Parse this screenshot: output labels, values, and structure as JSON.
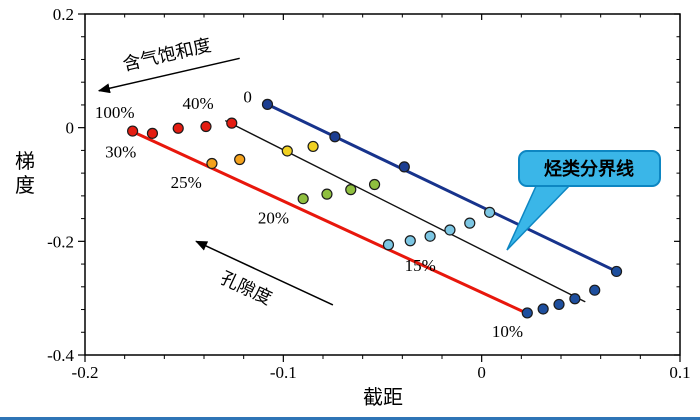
{
  "figure": {
    "background": "#ffffff",
    "bottom_rule_color": "#2e75b6"
  },
  "chart_data": {
    "type": "scatter",
    "title": "",
    "xlabel": "截距",
    "ylabel": "梯度",
    "xlim": [
      -0.2,
      0.1
    ],
    "ylim": [
      -0.4,
      0.2
    ],
    "x_ticks": [
      -0.2,
      -0.1,
      0,
      0.1
    ],
    "x_tick_labels": [
      "-0.2",
      "-0.1",
      "0",
      "0.1"
    ],
    "y_ticks": [
      0.2,
      0,
      -0.2,
      -0.4
    ],
    "y_tick_labels": [
      "0.2",
      "0",
      "-0.2",
      "-0.4"
    ],
    "x_minor_step": 0.02,
    "y_minor_step": 0.04,
    "grid": false,
    "legend": "none",
    "lines": [
      {
        "name": "water-line-0-saturation",
        "color": "#17338c",
        "width": 3,
        "points": [
          [
            -0.108,
            0.041
          ],
          [
            0.068,
            -0.253
          ]
        ]
      },
      {
        "name": "gas-line-100-saturation",
        "color": "#e8170c",
        "width": 3,
        "points": [
          [
            -0.176,
            -0.007
          ],
          [
            0.023,
            -0.327
          ]
        ]
      },
      {
        "name": "hydrocarbon-boundary-line",
        "color": "#111111",
        "width": 1.4,
        "points": [
          [
            -0.129,
            0.012
          ],
          [
            0.052,
            -0.306
          ]
        ]
      }
    ],
    "series": [
      {
        "name": "saturation-0-points",
        "color": "#1c3e91",
        "points": [
          [
            -0.108,
            0.041
          ],
          [
            -0.074,
            -0.016
          ],
          [
            -0.039,
            -0.069
          ]
        ]
      },
      {
        "name": "porosity-30-points",
        "color": "#e41d12",
        "points": [
          [
            -0.176,
            -0.006
          ],
          [
            -0.166,
            -0.01
          ]
        ]
      },
      {
        "name": "porosity-40-points",
        "color": "#e41d12",
        "points": [
          [
            -0.153,
            -0.001
          ],
          [
            -0.139,
            0.002
          ],
          [
            -0.126,
            0.008
          ]
        ]
      },
      {
        "name": "porosity-25-points",
        "color": "#f5a21c",
        "points": [
          [
            -0.136,
            -0.063
          ],
          [
            -0.122,
            -0.056
          ]
        ]
      },
      {
        "name": "porosity-25b-points",
        "color": "#f0d020",
        "points": [
          [
            -0.098,
            -0.041
          ],
          [
            -0.085,
            -0.033
          ]
        ]
      },
      {
        "name": "porosity-20-points",
        "color": "#8fbf3f",
        "points": [
          [
            -0.09,
            -0.125
          ],
          [
            -0.078,
            -0.117
          ],
          [
            -0.066,
            -0.109
          ],
          [
            -0.054,
            -0.1
          ]
        ]
      },
      {
        "name": "porosity-15-points",
        "color": "#7cc6e3",
        "points": [
          [
            -0.047,
            -0.206
          ],
          [
            -0.036,
            -0.199
          ],
          [
            -0.026,
            -0.191
          ],
          [
            -0.016,
            -0.18
          ],
          [
            -0.006,
            -0.168
          ],
          [
            0.004,
            -0.149
          ]
        ]
      },
      {
        "name": "porosity-10-points",
        "color": "#1e4f9e",
        "points": [
          [
            0.023,
            -0.326
          ],
          [
            0.031,
            -0.319
          ],
          [
            0.039,
            -0.311
          ],
          [
            0.047,
            -0.301
          ],
          [
            0.057,
            -0.286
          ],
          [
            0.068,
            -0.253
          ]
        ]
      }
    ],
    "point_labels": [
      {
        "text": "0",
        "x": -0.118,
        "y": 0.055
      },
      {
        "text": "100%",
        "x": -0.185,
        "y": 0.028
      },
      {
        "text": "40%",
        "x": -0.143,
        "y": 0.043
      },
      {
        "text": "30%",
        "x": -0.182,
        "y": -0.042
      },
      {
        "text": "25%",
        "x": -0.149,
        "y": -0.096
      },
      {
        "text": "20%",
        "x": -0.105,
        "y": -0.158
      },
      {
        "text": "15%",
        "x": -0.031,
        "y": -0.242
      },
      {
        "text": "10%",
        "x": 0.013,
        "y": -0.358
      }
    ],
    "arrows": [
      {
        "name": "gas-saturation-arrow",
        "label": "含气饱和度",
        "tail": [
          -0.122,
          0.122
        ],
        "head": [
          -0.193,
          0.065
        ],
        "label_x": -0.158,
        "label_y": 0.118,
        "label_rotation": -13
      },
      {
        "name": "porosity-arrow",
        "label": "孔隙度",
        "tail": [
          -0.075,
          -0.312
        ],
        "head": [
          -0.144,
          -0.2
        ],
        "label_x": -0.12,
        "label_y": -0.292,
        "label_rotation": 25
      }
    ],
    "callout": {
      "text": "烃类分界线",
      "fill": "#3ab6e8",
      "border": "#0d86c2",
      "text_color": "#0a2a70"
    }
  }
}
